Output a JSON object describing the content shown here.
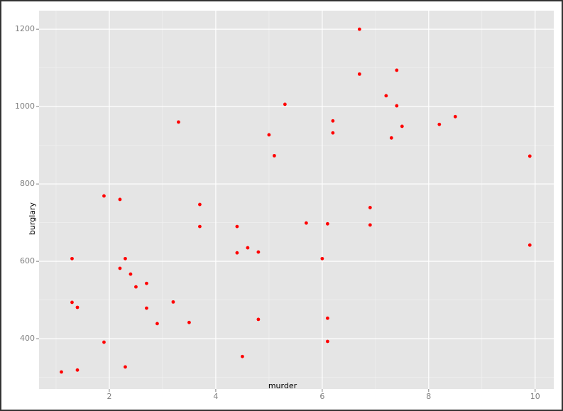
{
  "chart_data": {
    "type": "scatter",
    "x_label": "murder",
    "y_label": "burglary",
    "series": [
      {
        "color": "#ff0000",
        "x": [
          1.1,
          1.4,
          1.3,
          1.4,
          1.3,
          1.9,
          1.9,
          2.2,
          2.2,
          2.3,
          2.4,
          2.5,
          2.7,
          2.7,
          2.9,
          3.2,
          3.3,
          3.5,
          3.7,
          3.7,
          2.3,
          4.4,
          4.4,
          4.6,
          4.8,
          4.8,
          4.5,
          5.0,
          5.1,
          5.3,
          5.7,
          6.0,
          6.1,
          6.1,
          6.1,
          6.2,
          6.2,
          6.7,
          6.7,
          6.9,
          6.9,
          7.2,
          7.4,
          7.4,
          7.3,
          7.5,
          8.2,
          8.5,
          9.9,
          9.9
        ],
        "values": [
          314,
          319,
          494,
          481,
          607,
          769,
          391,
          760,
          582,
          607,
          567,
          534,
          543,
          479,
          439,
          495,
          960,
          442,
          747,
          690,
          327,
          690,
          622,
          635,
          624,
          450,
          354,
          927,
          873,
          1006,
          699,
          607,
          697,
          453,
          393,
          963,
          932,
          1200,
          1084,
          739,
          694,
          1028,
          1094,
          1002,
          919,
          949,
          954,
          974,
          872,
          642
        ]
      }
    ],
    "xlim": [
      0.68,
      10.35
    ],
    "ylim": [
      270,
      1248
    ],
    "xticks": [
      2,
      4,
      6,
      8,
      10
    ],
    "yticks": [
      400,
      600,
      800,
      1000,
      1200
    ],
    "grid": true
  }
}
